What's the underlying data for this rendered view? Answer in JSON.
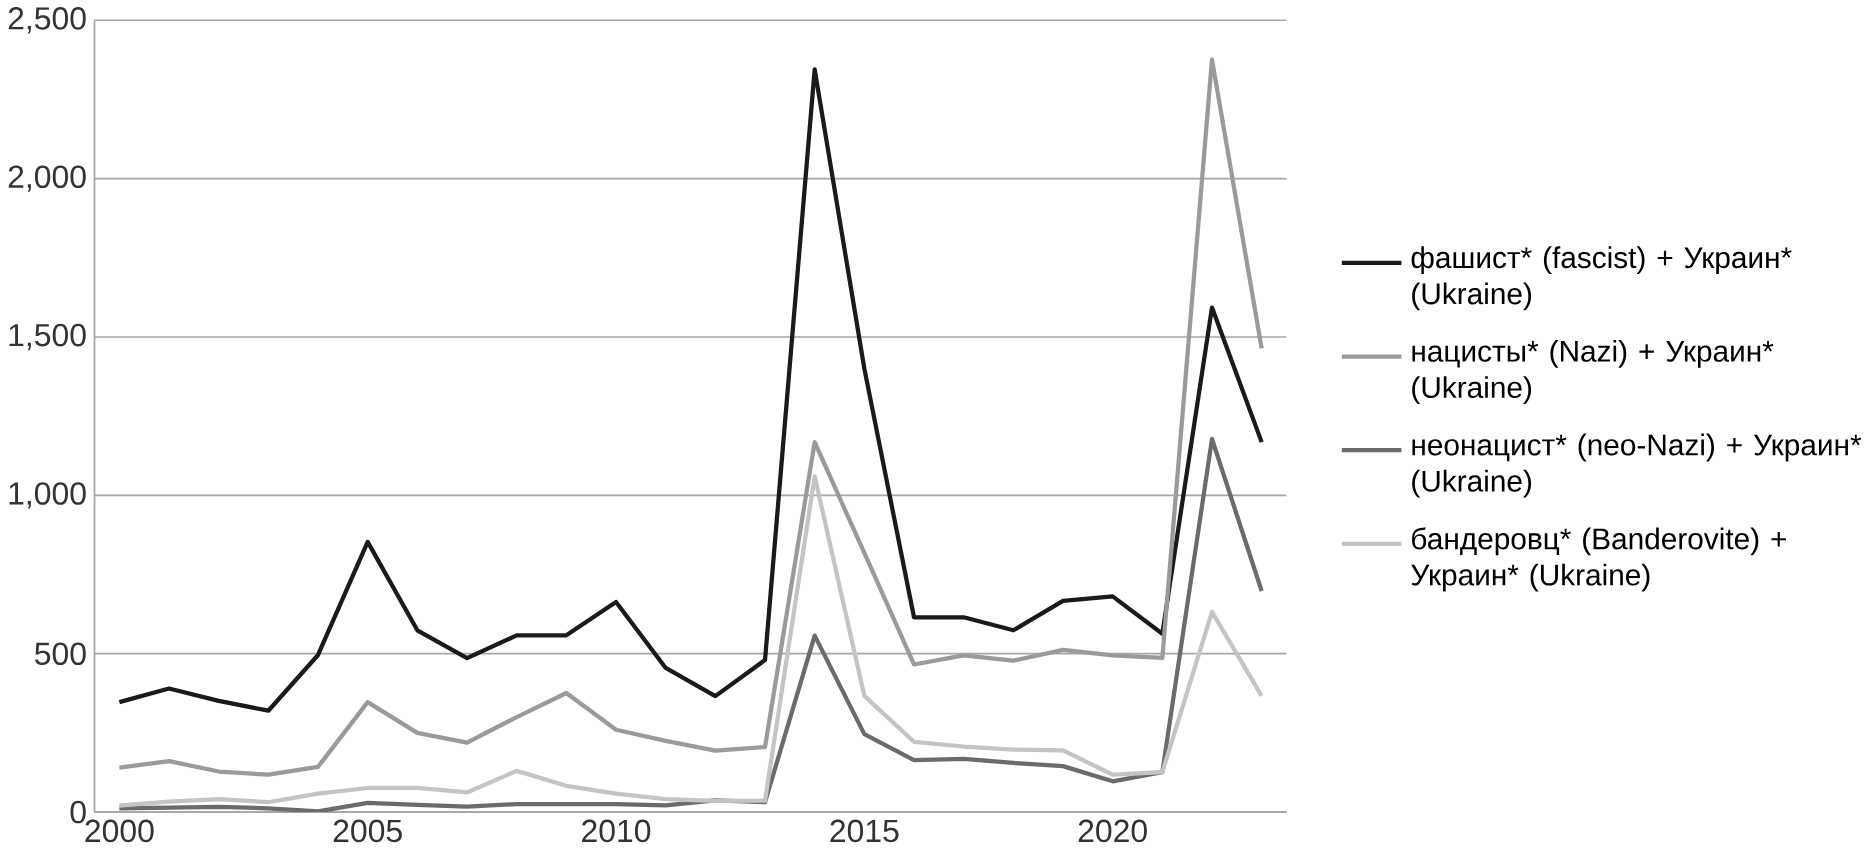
{
  "chart_data": {
    "type": "line",
    "x": [
      2000,
      2001,
      2002,
      2003,
      2004,
      2005,
      2006,
      2007,
      2008,
      2009,
      2010,
      2011,
      2012,
      2013,
      2014,
      2015,
      2016,
      2017,
      2018,
      2019,
      2020,
      2021,
      2022,
      2023
    ],
    "series": [
      {
        "name": "фашист* (fascist) + Украин* (Ukraine)",
        "color": "#1a1a1a",
        "values": [
          347,
          390,
          351,
          320,
          496,
          853,
          574,
          486,
          558,
          558,
          663,
          455,
          366,
          480,
          2345,
          1400,
          615,
          615,
          574,
          667,
          681,
          563,
          1593,
          1168
        ]
      },
      {
        "name": "нацисты* (Nazi) + Украин* (Ukraine)",
        "color": "#9a9a9a",
        "values": [
          140,
          161,
          128,
          118,
          143,
          347,
          250,
          219,
          300,
          376,
          260,
          225,
          194,
          205,
          1168,
          818,
          466,
          495,
          478,
          512,
          495,
          487,
          2376,
          1464
        ]
      },
      {
        "name": "неонацист* (neo-Nazi) + Украин* (Ukraine)",
        "color": "#6b6b6b",
        "values": [
          12,
          14,
          16,
          12,
          2,
          29,
          23,
          17,
          25,
          25,
          25,
          21,
          37,
          31,
          557,
          246,
          164,
          168,
          155,
          145,
          97,
          126,
          1178,
          698
        ]
      },
      {
        "name": "бандеровц* (Banderovite) + Украин* (Ukraine)",
        "color": "#c4c4c4",
        "values": [
          20,
          33,
          41,
          31,
          58,
          76,
          76,
          62,
          130,
          83,
          58,
          41,
          35,
          36,
          1060,
          367,
          222,
          207,
          197,
          195,
          118,
          126,
          632,
          367
        ]
      }
    ],
    "xlim": [
      1999.5,
      2023.5
    ],
    "xticks": [
      2000,
      2005,
      2010,
      2015,
      2020
    ],
    "ylim": [
      0,
      2500
    ],
    "yticks": [
      {
        "value": 0,
        "label": "0"
      },
      {
        "value": 500,
        "label": "500"
      },
      {
        "value": 1000,
        "label": "1,000"
      },
      {
        "value": 1500,
        "label": "1,500"
      },
      {
        "value": 2000,
        "label": "2,000"
      },
      {
        "value": 2500,
        "label": "2,500"
      }
    ],
    "grid": "y",
    "legend": "right",
    "marker": "none",
    "line_style": "solid"
  }
}
